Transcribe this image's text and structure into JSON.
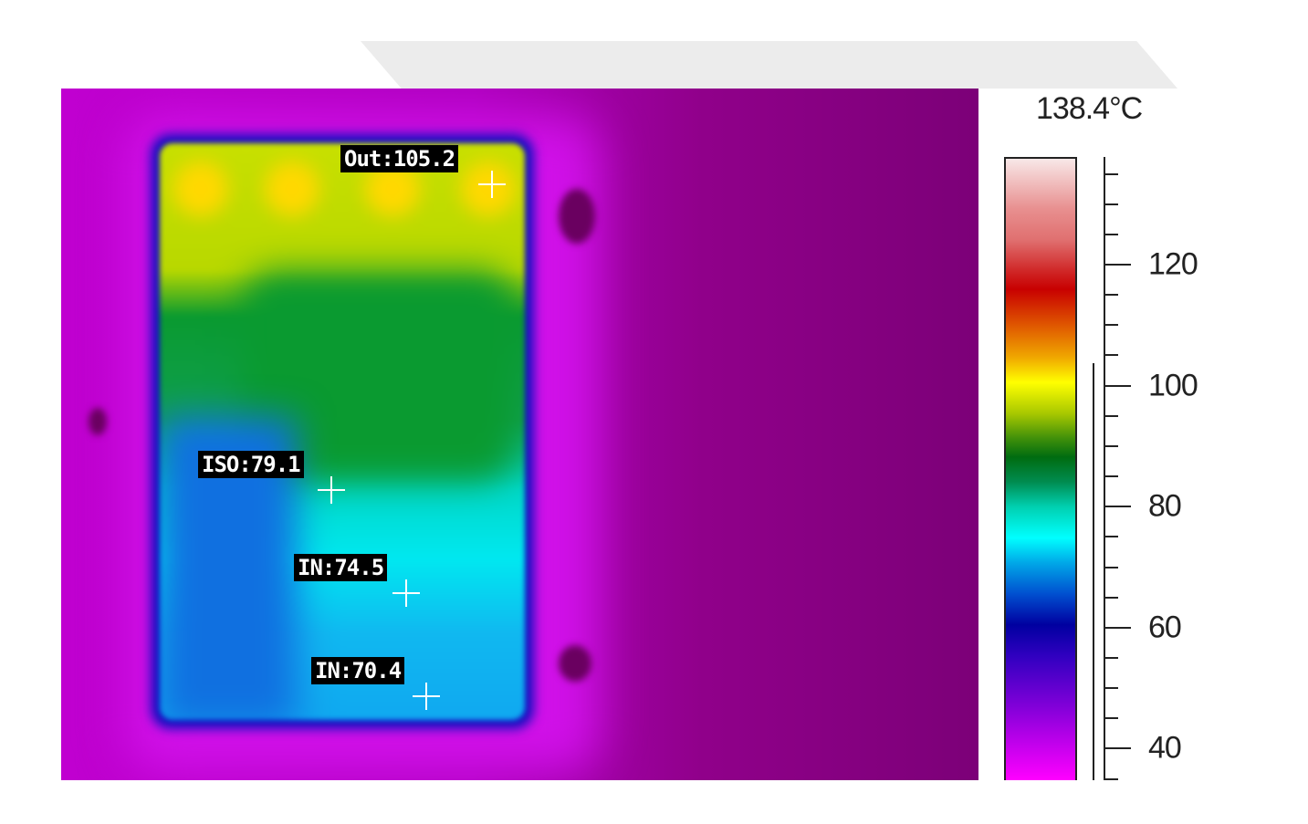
{
  "max_temperature_label": "138.4°C",
  "scale": {
    "unit": "°C",
    "max": 138.4,
    "tick_labels": [
      "120",
      "100",
      "80",
      "60",
      "40"
    ],
    "tick_values": [
      120,
      100,
      80,
      60,
      40
    ],
    "palette": "rainbow (magenta-blue-cyan-green-yellow-red-white)"
  },
  "measurements": [
    {
      "label": "Out:105.2"
    },
    {
      "label": "ISO:79.1"
    },
    {
      "label": "IN:74.5"
    },
    {
      "label": "IN:70.4"
    }
  ]
}
